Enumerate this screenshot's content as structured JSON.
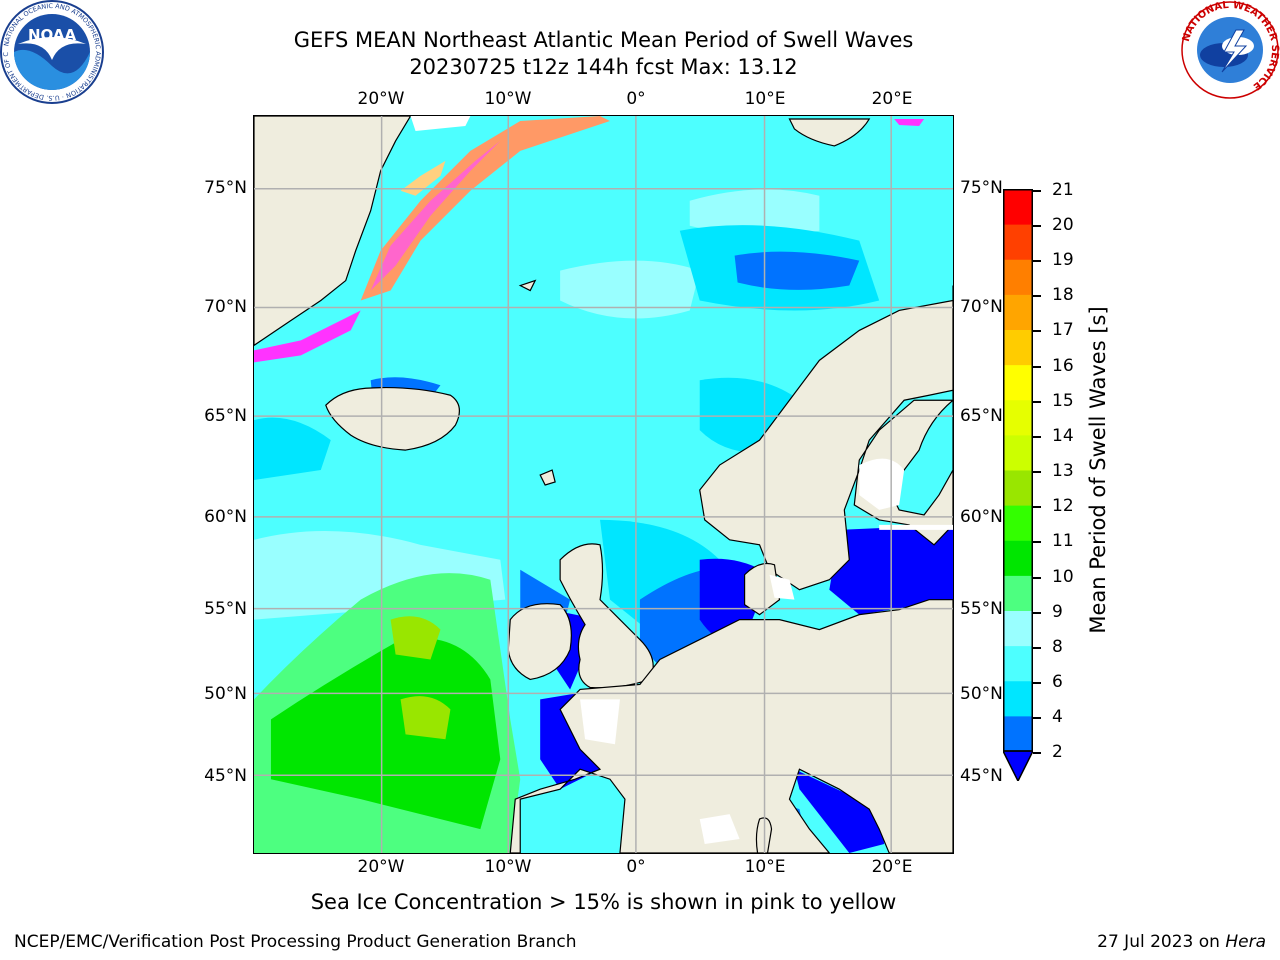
{
  "title_line1": "GEFS MEAN Northeast Atlantic Mean Period of Swell Waves",
  "title_line2": "20230725 t12z 144h fcst   Max: 13.12",
  "caption": "Sea Ice Concentration > 15% is shown in pink to yellow",
  "footer_left": "NCEP/EMC/Verification Post Processing Product Generation Branch",
  "footer_right_date": "27 Jul 2023 on ",
  "footer_right_host": "Hera",
  "logos": {
    "noaa_text": "NOAA",
    "noaa_ring_text": "NATIONAL OCEANIC AND ATMOSPHERIC ADMINISTRATION · U.S. DEPARTMENT OF COMMERCE",
    "nws_ring_text": "NATIONAL WEATHER SERVICE"
  },
  "map": {
    "lon_labels": [
      "20°W",
      "10°W",
      "0°",
      "10°E",
      "20°E"
    ],
    "lat_labels": [
      "75°N",
      "70°N",
      "65°N",
      "60°N",
      "55°N",
      "50°N",
      "45°N"
    ],
    "colors": {
      "land": "#efedde",
      "ocean_base": "#4dffff",
      "grid": "#b0b0b0"
    }
  },
  "colorbar": {
    "label": "Mean Period of Swell Waves [s]",
    "ticks": [
      "2",
      "4",
      "6",
      "8",
      "9",
      "10",
      "11",
      "12",
      "13",
      "14",
      "15",
      "16",
      "17",
      "18",
      "19",
      "20",
      "21"
    ],
    "colors": [
      "#0000ff",
      "#0073ff",
      "#00e6ff",
      "#4dffff",
      "#99ffff",
      "#4dff80",
      "#00e600",
      "#33ff00",
      "#99e600",
      "#ccff00",
      "#e6ff00",
      "#ffff00",
      "#ffcc00",
      "#ffa500",
      "#ff7f00",
      "#ff4000",
      "#ff0000"
    ],
    "under_color": "#0000ff"
  }
}
